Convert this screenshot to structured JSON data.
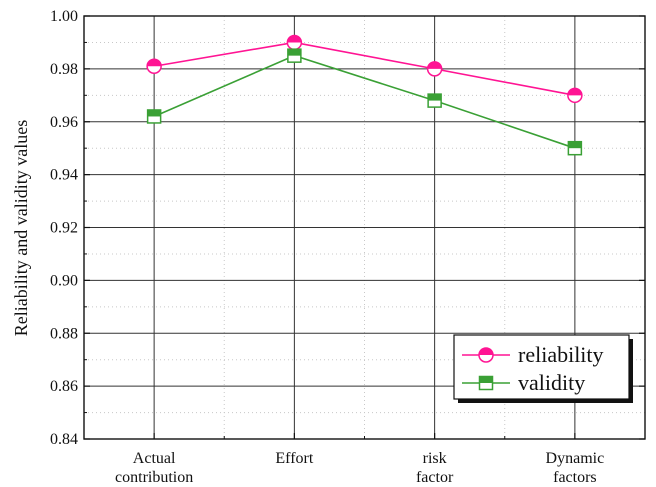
{
  "chart_data": {
    "type": "line",
    "title": "",
    "xlabel": "",
    "ylabel": "Reliability and validity values",
    "categories": [
      [
        "Actual",
        "contribution"
      ],
      [
        "Effort"
      ],
      [
        "risk",
        "factor"
      ],
      [
        "Dynamic",
        "factors"
      ]
    ],
    "ylim": [
      0.84,
      1.0
    ],
    "yticks": [
      "0.84",
      "0.86",
      "0.88",
      "0.90",
      "0.92",
      "0.94",
      "0.96",
      "0.98",
      "1.00"
    ],
    "grid": true,
    "legend_position": "bottom-right",
    "series": [
      {
        "name": "reliability",
        "values": [
          0.981,
          0.99,
          0.98,
          0.97
        ],
        "color": "#ff1493",
        "marker": "half-filled-circle"
      },
      {
        "name": "validity",
        "values": [
          0.962,
          0.985,
          0.968,
          0.95
        ],
        "color": "#3aa035",
        "marker": "half-filled-square"
      }
    ]
  }
}
